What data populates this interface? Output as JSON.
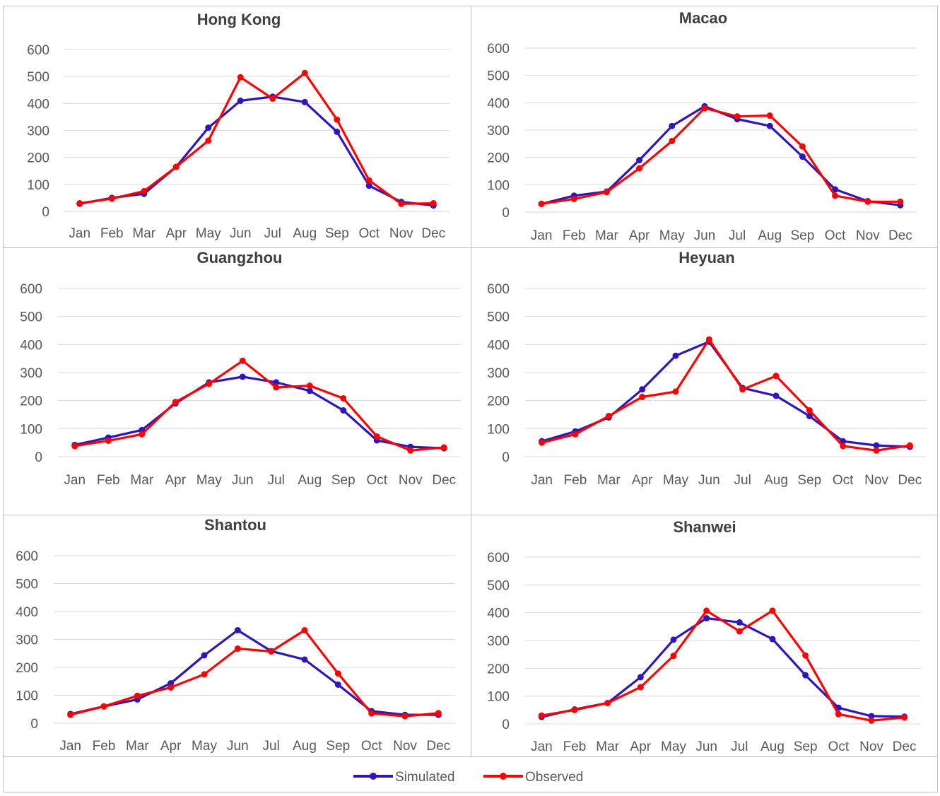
{
  "colors": {
    "simulated": "#2e17b8",
    "observed": "#ff0000"
  },
  "legend": {
    "simulated_label": "Simulated",
    "observed_label": "Observed"
  },
  "chart_data": [
    {
      "type": "line",
      "title": "Hong Kong",
      "categories": [
        "Jan",
        "Feb",
        "Mar",
        "Apr",
        "May",
        "Jun",
        "Jul",
        "Aug",
        "Sep",
        "Oct",
        "Nov",
        "Dec"
      ],
      "ylim": [
        0,
        600
      ],
      "yticks": [
        0,
        100,
        200,
        300,
        400,
        500,
        600
      ],
      "grid": true,
      "series": [
        {
          "name": "Simulated",
          "values": [
            28,
            50,
            65,
            165,
            310,
            410,
            425,
            405,
            295,
            95,
            35,
            22
          ]
        },
        {
          "name": "Observed",
          "values": [
            30,
            47,
            75,
            165,
            262,
            497,
            418,
            513,
            340,
            115,
            28,
            30
          ]
        }
      ]
    },
    {
      "type": "line",
      "title": "Macao",
      "categories": [
        "Jan",
        "Feb",
        "Mar",
        "Apr",
        "May",
        "Jun",
        "Jul",
        "Aug",
        "Sep",
        "Oct",
        "Nov",
        "Dec"
      ],
      "ylim": [
        0,
        600
      ],
      "yticks": [
        0,
        100,
        200,
        300,
        400,
        500,
        600
      ],
      "grid": true,
      "series": [
        {
          "name": "Simulated",
          "values": [
            30,
            60,
            75,
            190,
            315,
            387,
            340,
            315,
            203,
            83,
            40,
            25
          ]
        },
        {
          "name": "Observed",
          "values": [
            30,
            48,
            73,
            160,
            260,
            380,
            350,
            353,
            240,
            60,
            38,
            38
          ]
        }
      ]
    },
    {
      "type": "line",
      "title": "Guangzhou",
      "categories": [
        "Jan",
        "Feb",
        "Mar",
        "Apr",
        "May",
        "Jun",
        "Jul",
        "Aug",
        "Sep",
        "Oct",
        "Nov",
        "Dec"
      ],
      "ylim": [
        0,
        600
      ],
      "yticks": [
        0,
        100,
        200,
        300,
        400,
        500,
        600
      ],
      "grid": true,
      "series": [
        {
          "name": "Simulated",
          "values": [
            42,
            68,
            95,
            190,
            265,
            285,
            265,
            235,
            165,
            58,
            35,
            30
          ]
        },
        {
          "name": "Observed",
          "values": [
            38,
            57,
            80,
            195,
            260,
            342,
            247,
            253,
            208,
            72,
            22,
            33
          ]
        }
      ]
    },
    {
      "type": "line",
      "title": "Heyuan",
      "categories": [
        "Jan",
        "Feb",
        "Mar",
        "Apr",
        "May",
        "Jun",
        "Jul",
        "Aug",
        "Sep",
        "Oct",
        "Nov",
        "Dec"
      ],
      "ylim": [
        0,
        600
      ],
      "yticks": [
        0,
        100,
        200,
        300,
        400,
        500,
        600
      ],
      "grid": true,
      "series": [
        {
          "name": "Simulated",
          "values": [
            55,
            90,
            140,
            240,
            360,
            410,
            245,
            217,
            145,
            55,
            40,
            35
          ]
        },
        {
          "name": "Observed",
          "values": [
            50,
            80,
            145,
            213,
            232,
            418,
            240,
            288,
            165,
            38,
            22,
            40
          ]
        }
      ]
    },
    {
      "type": "line",
      "title": "Shantou",
      "categories": [
        "Jan",
        "Feb",
        "Mar",
        "Apr",
        "May",
        "Jun",
        "Jul",
        "Aug",
        "Sep",
        "Oct",
        "Nov",
        "Dec"
      ],
      "ylim": [
        0,
        600
      ],
      "yticks": [
        0,
        100,
        200,
        300,
        400,
        500,
        600
      ],
      "grid": true,
      "series": [
        {
          "name": "Simulated",
          "values": [
            33,
            60,
            85,
            143,
            243,
            333,
            258,
            228,
            138,
            43,
            30,
            30
          ]
        },
        {
          "name": "Observed",
          "values": [
            30,
            60,
            98,
            128,
            175,
            267,
            257,
            333,
            178,
            35,
            25,
            36
          ]
        }
      ]
    },
    {
      "type": "line",
      "title": "Shanwei",
      "categories": [
        "Jan",
        "Feb",
        "Mar",
        "Apr",
        "May",
        "Jun",
        "Jul",
        "Aug",
        "Sep",
        "Oct",
        "Nov",
        "Dec"
      ],
      "ylim": [
        0,
        600
      ],
      "yticks": [
        0,
        100,
        200,
        300,
        400,
        500,
        600
      ],
      "grid": true,
      "series": [
        {
          "name": "Simulated",
          "values": [
            25,
            52,
            75,
            168,
            303,
            380,
            365,
            305,
            175,
            58,
            28,
            26
          ]
        },
        {
          "name": "Observed",
          "values": [
            30,
            50,
            75,
            132,
            245,
            407,
            333,
            407,
            246,
            35,
            12,
            23
          ]
        }
      ]
    }
  ]
}
